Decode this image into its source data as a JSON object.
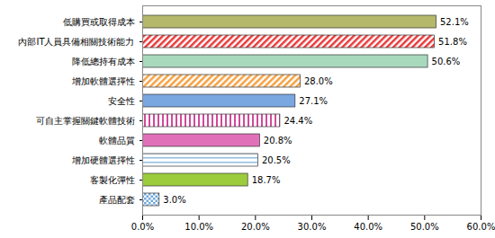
{
  "chart_data": {
    "type": "bar",
    "orientation": "horizontal",
    "categories": [
      "低購買或取得成本",
      "內部IT人員具備相關技術能力",
      "降低總持有成本",
      "增加軟體選擇性",
      "安全性",
      "可自主掌握關鍵軟體技術",
      "軟體品質",
      "增加硬體選擇性",
      "客製化彈性",
      "產品配套"
    ],
    "values": [
      52.1,
      51.8,
      50.6,
      28.0,
      27.1,
      24.4,
      20.8,
      20.5,
      18.7,
      3.0
    ],
    "value_labels": [
      "52.1%",
      "51.8%",
      "50.6%",
      "28.0%",
      "27.1%",
      "24.4%",
      "20.8%",
      "20.5%",
      "18.7%",
      "3.0%"
    ],
    "colors": [
      "#b5b86b",
      "#e8393a",
      "#a9d9bd",
      "#f5a040",
      "#7aa7e0",
      "#d04a9a",
      "#e070b8",
      "#8fbbe0",
      "#9ccc3c",
      "#6fa8dc"
    ],
    "xlim": [
      0,
      60
    ],
    "xticks": [
      {
        "value": 0,
        "label": "0.0%"
      },
      {
        "value": 10,
        "label": "10.0%"
      },
      {
        "value": 20,
        "label": "20.0%"
      },
      {
        "value": 30,
        "label": "30.0%"
      },
      {
        "value": 40,
        "label": "40.0%"
      },
      {
        "value": 50,
        "label": "50.0%"
      },
      {
        "value": 60,
        "label": "60.0%"
      }
    ],
    "data_labels": true,
    "grid": false
  }
}
